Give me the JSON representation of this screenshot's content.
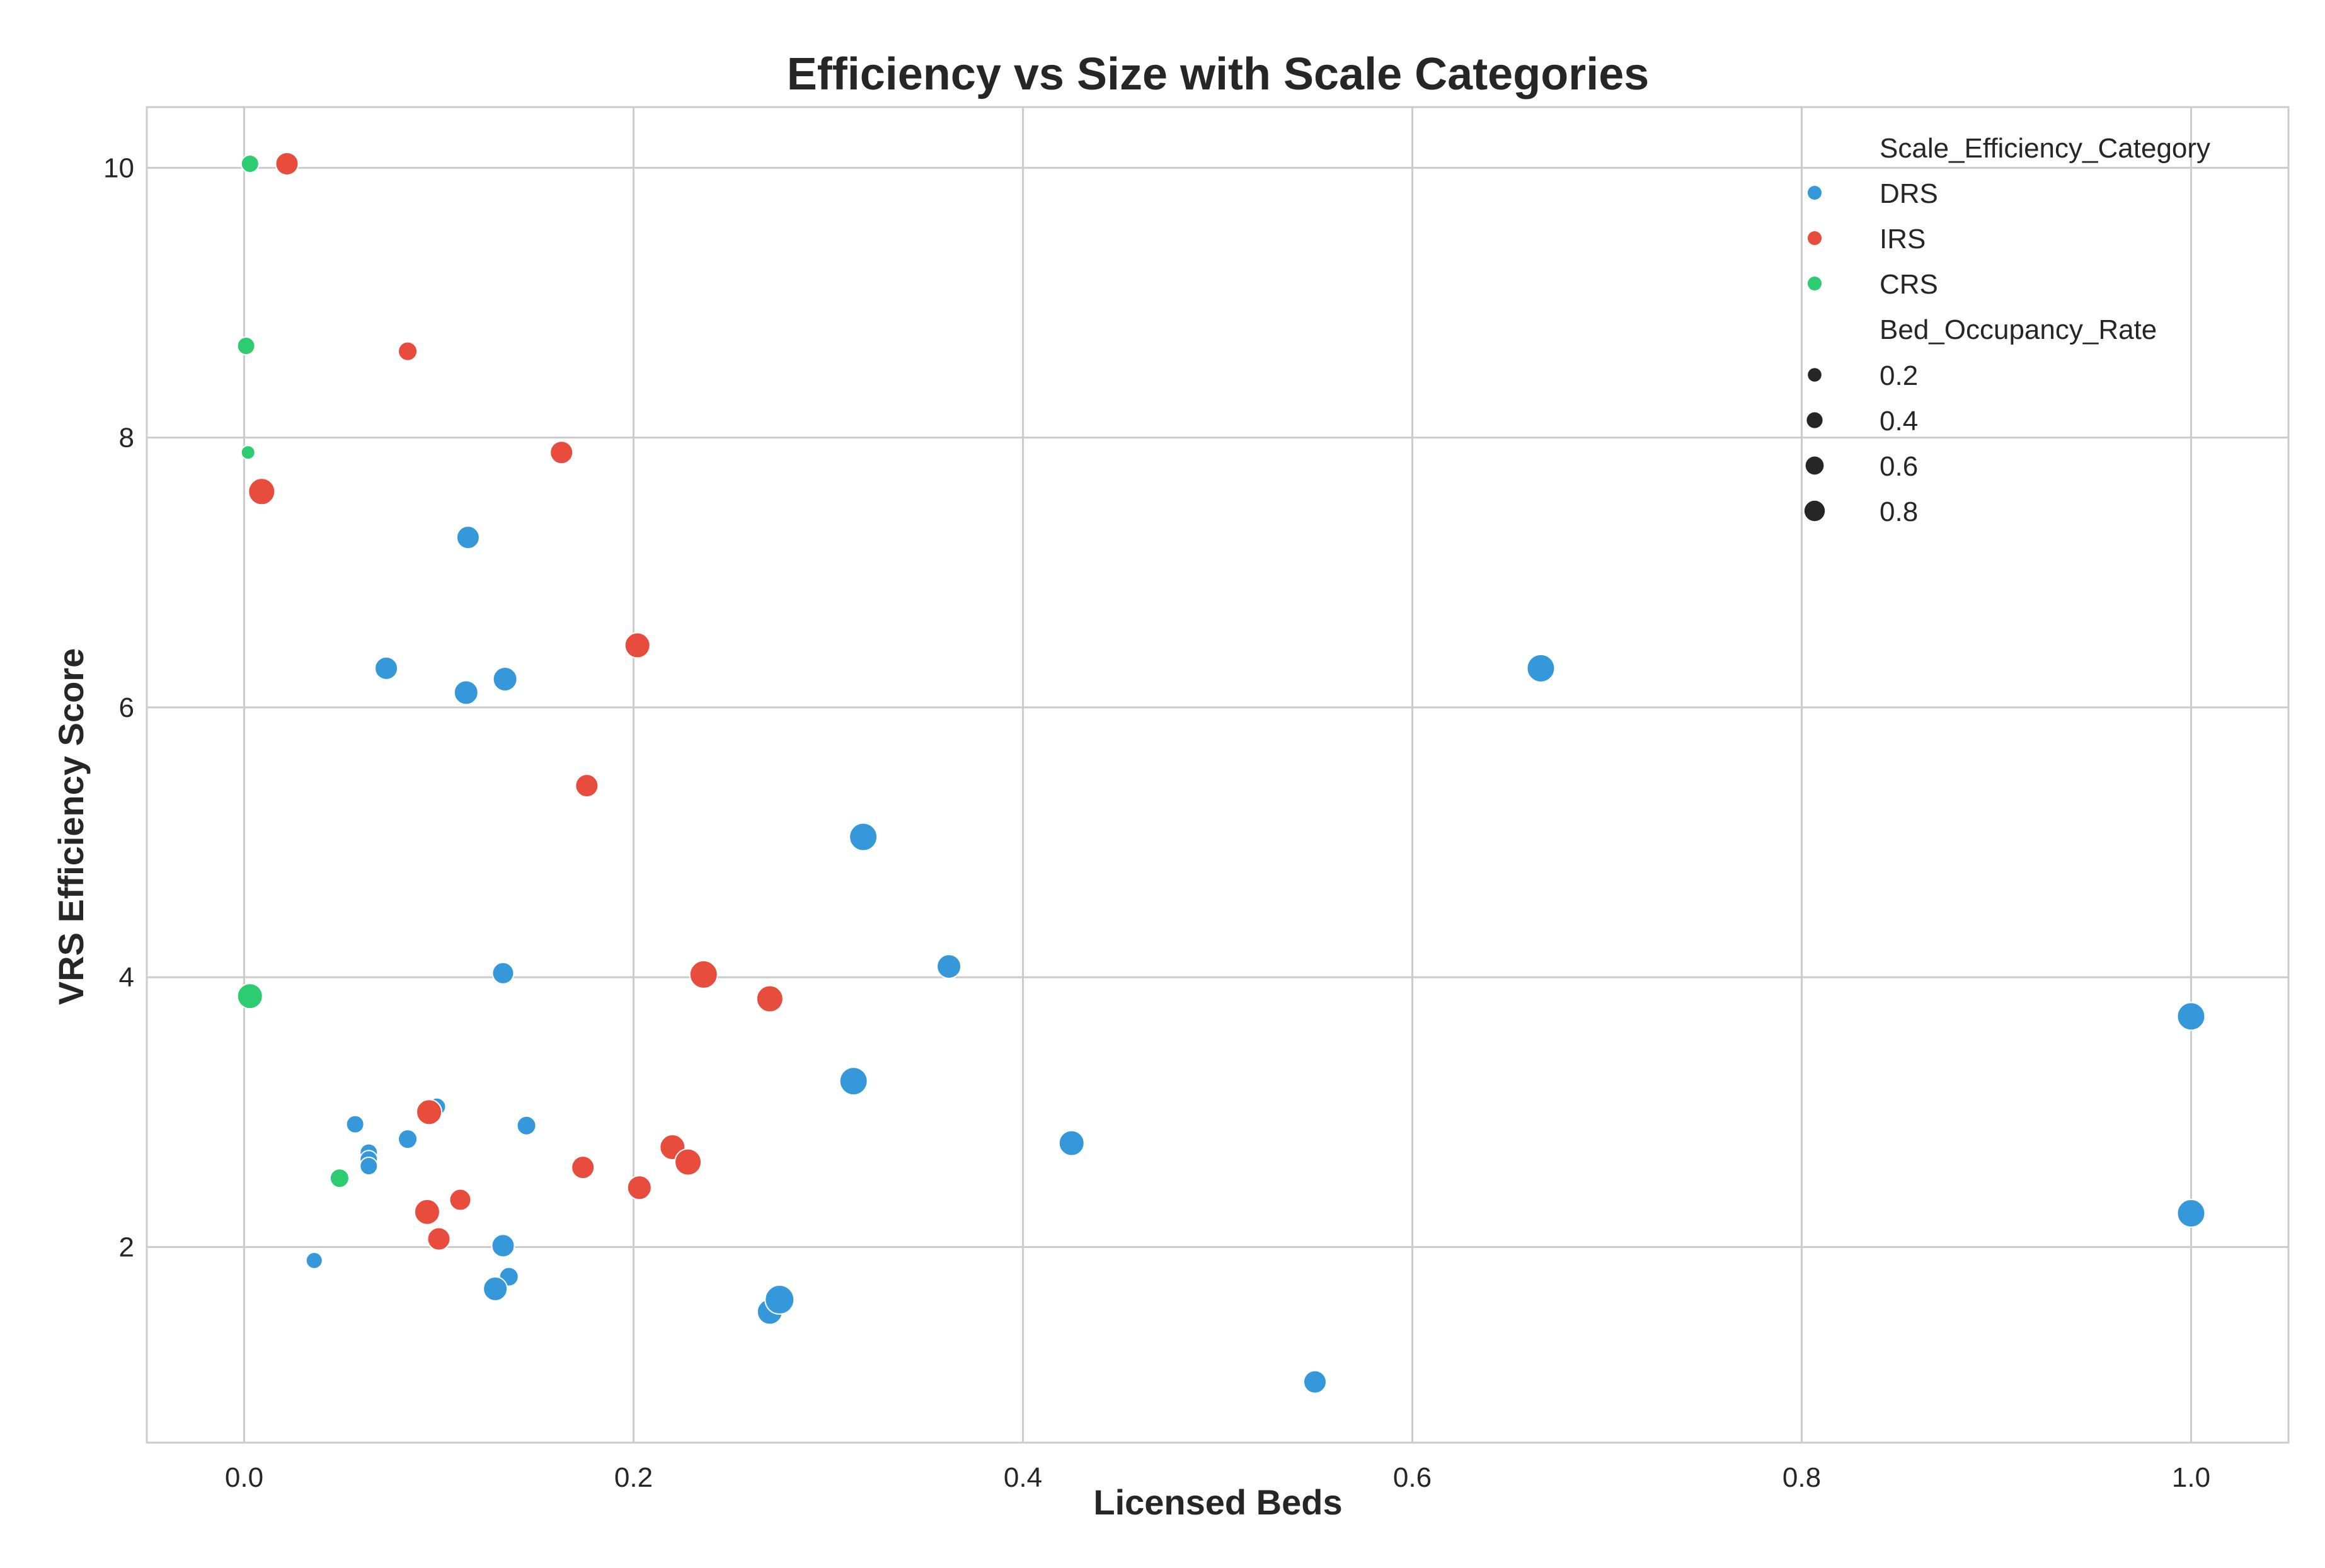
{
  "chart_data": {
    "type": "scatter",
    "title": "Efficiency vs Size with Scale Categories",
    "xlabel": "Licensed Beds",
    "ylabel": "VRS Efficiency Score",
    "xlim": [
      -0.05,
      1.05
    ],
    "ylim": [
      0.55,
      10.45
    ],
    "xticks": [
      0.0,
      0.2,
      0.4,
      0.6,
      0.8,
      1.0
    ],
    "xtick_labels": [
      "0.0",
      "0.2",
      "0.4",
      "0.6",
      "0.8",
      "1.0"
    ],
    "yticks": [
      2,
      4,
      6,
      8,
      10
    ],
    "ytick_labels": [
      "2",
      "4",
      "6",
      "8",
      "10"
    ],
    "grid": true,
    "legend": {
      "placement": "top-right",
      "hue_title": "Scale_Efficiency_Category",
      "size_title": "Bed_Occupancy_Rate",
      "size_entries": [
        {
          "label": "0.2",
          "value": 0.2
        },
        {
          "label": "0.4",
          "value": 0.4
        },
        {
          "label": "0.6",
          "value": 0.6
        },
        {
          "label": "0.8",
          "value": 0.8
        }
      ]
    },
    "series": [
      {
        "name": "DRS",
        "color": "#3498db",
        "points": [
          {
            "x": 0.115,
            "y": 7.26,
            "s": 0.55
          },
          {
            "x": 0.073,
            "y": 6.29,
            "s": 0.55
          },
          {
            "x": 0.114,
            "y": 6.11,
            "s": 0.6
          },
          {
            "x": 0.134,
            "y": 6.21,
            "s": 0.6
          },
          {
            "x": 0.318,
            "y": 5.04,
            "s": 0.75
          },
          {
            "x": 0.362,
            "y": 4.08,
            "s": 0.6
          },
          {
            "x": 0.133,
            "y": 4.03,
            "s": 0.5
          },
          {
            "x": 0.666,
            "y": 6.29,
            "s": 0.75
          },
          {
            "x": 1.0,
            "y": 3.71,
            "s": 0.75
          },
          {
            "x": 1.0,
            "y": 2.25,
            "s": 0.75
          },
          {
            "x": 0.313,
            "y": 3.23,
            "s": 0.75
          },
          {
            "x": 0.425,
            "y": 2.77,
            "s": 0.65
          },
          {
            "x": 0.057,
            "y": 2.91,
            "s": 0.35
          },
          {
            "x": 0.099,
            "y": 3.04,
            "s": 0.35
          },
          {
            "x": 0.145,
            "y": 2.9,
            "s": 0.4
          },
          {
            "x": 0.084,
            "y": 2.8,
            "s": 0.4
          },
          {
            "x": 0.064,
            "y": 2.7,
            "s": 0.35
          },
          {
            "x": 0.064,
            "y": 2.65,
            "s": 0.35
          },
          {
            "x": 0.064,
            "y": 2.6,
            "s": 0.35
          },
          {
            "x": 0.133,
            "y": 2.01,
            "s": 0.55
          },
          {
            "x": 0.036,
            "y": 1.9,
            "s": 0.3
          },
          {
            "x": 0.136,
            "y": 1.78,
            "s": 0.4
          },
          {
            "x": 0.129,
            "y": 1.69,
            "s": 0.6
          },
          {
            "x": 0.27,
            "y": 1.52,
            "s": 0.65
          },
          {
            "x": 0.275,
            "y": 1.61,
            "s": 0.8
          },
          {
            "x": 0.55,
            "y": 1.0,
            "s": 0.55
          }
        ]
      },
      {
        "name": "IRS",
        "color": "#e74c3c",
        "points": [
          {
            "x": 0.022,
            "y": 10.03,
            "s": 0.55
          },
          {
            "x": 0.084,
            "y": 8.64,
            "s": 0.4
          },
          {
            "x": 0.163,
            "y": 7.89,
            "s": 0.55
          },
          {
            "x": 0.009,
            "y": 7.6,
            "s": 0.7
          },
          {
            "x": 0.202,
            "y": 6.46,
            "s": 0.65
          },
          {
            "x": 0.176,
            "y": 5.42,
            "s": 0.55
          },
          {
            "x": 0.236,
            "y": 4.02,
            "s": 0.75
          },
          {
            "x": 0.27,
            "y": 3.84,
            "s": 0.7
          },
          {
            "x": 0.095,
            "y": 3.0,
            "s": 0.65
          },
          {
            "x": 0.22,
            "y": 2.74,
            "s": 0.65
          },
          {
            "x": 0.228,
            "y": 2.63,
            "s": 0.7
          },
          {
            "x": 0.174,
            "y": 2.59,
            "s": 0.55
          },
          {
            "x": 0.203,
            "y": 2.44,
            "s": 0.6
          },
          {
            "x": 0.111,
            "y": 2.35,
            "s": 0.5
          },
          {
            "x": 0.094,
            "y": 2.26,
            "s": 0.65
          },
          {
            "x": 0.1,
            "y": 2.06,
            "s": 0.55
          }
        ]
      },
      {
        "name": "CRS",
        "color": "#2ecc71",
        "points": [
          {
            "x": 0.003,
            "y": 10.03,
            "s": 0.35
          },
          {
            "x": 0.001,
            "y": 8.68,
            "s": 0.35
          },
          {
            "x": 0.002,
            "y": 7.89,
            "s": 0.2
          },
          {
            "x": 0.003,
            "y": 3.86,
            "s": 0.65
          },
          {
            "x": 0.049,
            "y": 2.51,
            "s": 0.4
          }
        ]
      }
    ]
  }
}
